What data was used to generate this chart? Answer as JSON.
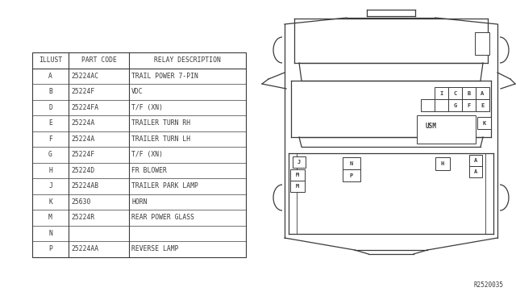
{
  "reference": "R2520035",
  "table": {
    "headers": [
      "ILLUST",
      "PART CODE",
      "RELAY DESCRIPTION"
    ],
    "rows": [
      [
        "A",
        "25224AC",
        "TRAIL POWER 7-PIN"
      ],
      [
        "B",
        "25224F",
        "VDC"
      ],
      [
        "D",
        "25224FA",
        "T/F (XN)"
      ],
      [
        "E",
        "25224A",
        "TRAILER TURN RH"
      ],
      [
        "F",
        "25224A",
        "TRAILER TURN LH"
      ],
      [
        "G",
        "25224F",
        "T/F (XN)"
      ],
      [
        "H",
        "25224D",
        "FR BLOWER"
      ],
      [
        "J",
        "25224AB",
        "TRAILER PARK LAMP"
      ],
      [
        "K",
        "25630",
        "HORN"
      ],
      [
        "M",
        "25224R",
        "REAR POWER GLASS"
      ],
      [
        "N",
        "",
        ""
      ],
      [
        "P",
        "25224AA",
        "REVERSE LAMP"
      ]
    ]
  },
  "bg_color": "#ffffff",
  "line_color": "#3a3a3a",
  "text_color": "#3a3a3a"
}
